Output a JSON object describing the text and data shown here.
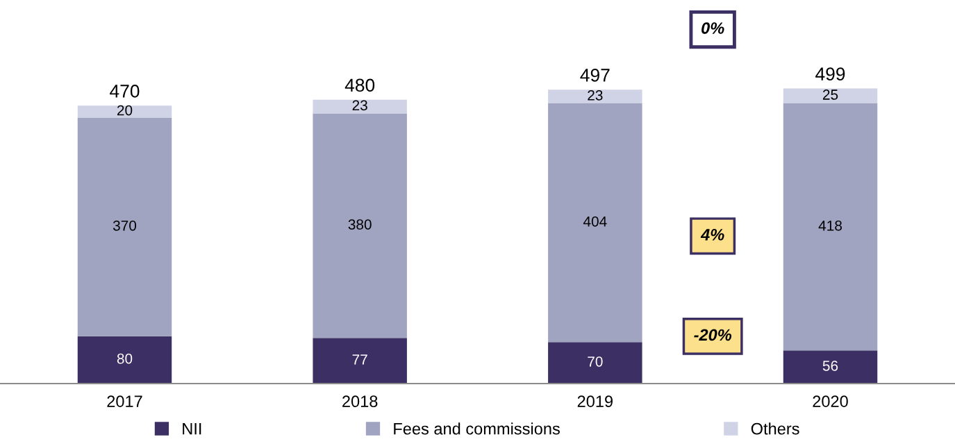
{
  "chart_data": {
    "type": "bar",
    "stacked": true,
    "data_labels": true,
    "legend": "bottom",
    "grid": false,
    "categories": [
      "2017",
      "2018",
      "2019",
      "2020"
    ],
    "series": [
      {
        "name": "NII",
        "color": "#3b2f63",
        "values": [
          80,
          77,
          70,
          56
        ]
      },
      {
        "name": "Fees and commissions",
        "color": "#a0a4c0",
        "values": [
          370,
          380,
          404,
          418
        ]
      },
      {
        "name": "Others",
        "color": "#d0d3e6",
        "values": [
          20,
          23,
          23,
          25
        ]
      }
    ],
    "totals": [
      "470",
      "480",
      "497",
      "499"
    ],
    "annotations": [
      "0%",
      "4%",
      "-20%"
    ]
  }
}
